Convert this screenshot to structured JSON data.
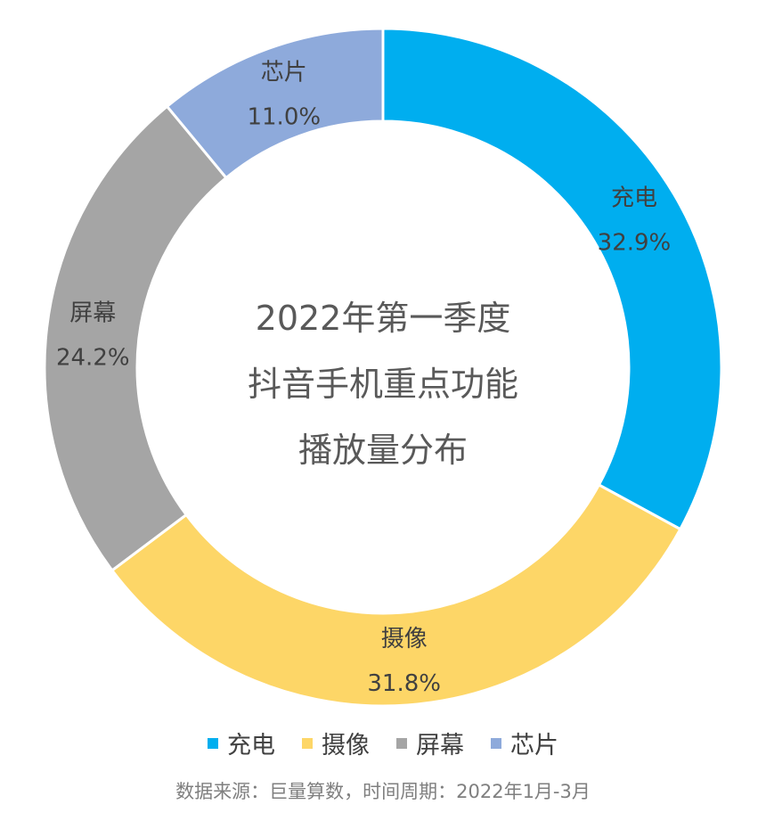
{
  "chart_data": {
    "type": "pie",
    "variant": "donut",
    "title_lines": [
      "2022年第一季度",
      "抖音手机重点功能",
      "播放量分布"
    ],
    "unit": "%",
    "start": "12 o'clock, clockwise",
    "slices": [
      {
        "name": "充电",
        "value": 32.9,
        "value_label": "32.9%",
        "color": "#00aeef"
      },
      {
        "name": "摄像",
        "value": 31.8,
        "value_label": "31.8%",
        "color": "#fdd667"
      },
      {
        "name": "屏幕",
        "value": 24.2,
        "value_label": "24.2%",
        "color": "#a5a5a5"
      },
      {
        "name": "芯片",
        "value": 11.0,
        "value_label": "11.0%",
        "color": "#8eaadb"
      }
    ],
    "legend_position": "bottom",
    "source": "数据来源：巨量算数，时间周期：2022年1月-3月"
  }
}
